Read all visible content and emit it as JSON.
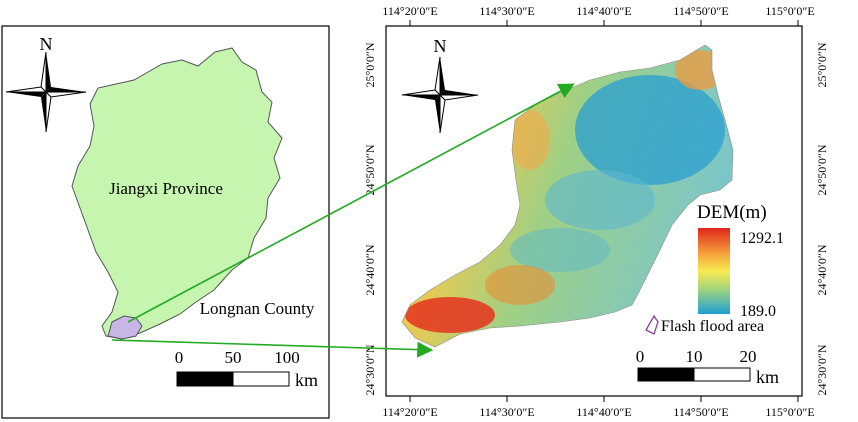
{
  "left_panel": {
    "north_label": "N",
    "province_label": "Jiangxi Province",
    "county_label": "Longnan County",
    "scale_ticks": [
      "0",
      "50",
      "100"
    ],
    "scale_unit": "km"
  },
  "right_panel": {
    "north_label": "N",
    "top_ticks": [
      "114°20′0″E",
      "114°30′0″E",
      "114°40′0″E",
      "114°50′0″E",
      "115°0′0″E"
    ],
    "bottom_ticks": [
      "114°20′0″E",
      "114°30′0″E",
      "114°40′0″E",
      "114°50′0″E",
      "115°0′0″E"
    ],
    "left_ticks": [
      "25°0′0″N",
      "24°50′0″N",
      "24°40′0″N",
      "24°30′0″N"
    ],
    "right_ticks": [
      "25°0′0″N",
      "24°50′0″N",
      "24°40′0″N",
      "24°30′0″N"
    ],
    "legend": {
      "title": "DEM(m)",
      "max": "1292.1",
      "min": "189.0",
      "flood_label": "Flash flood area",
      "colors": [
        "#e0261c",
        "#f5a23a",
        "#f7ea50",
        "#9ed37f",
        "#1f9fd6"
      ]
    },
    "scale_ticks": [
      "0",
      "10",
      "20"
    ],
    "scale_unit": "km"
  },
  "colors": {
    "province_fill": "#c6f5b0",
    "county_fill": "#c8b6e6",
    "arrow": "#22aa22"
  }
}
